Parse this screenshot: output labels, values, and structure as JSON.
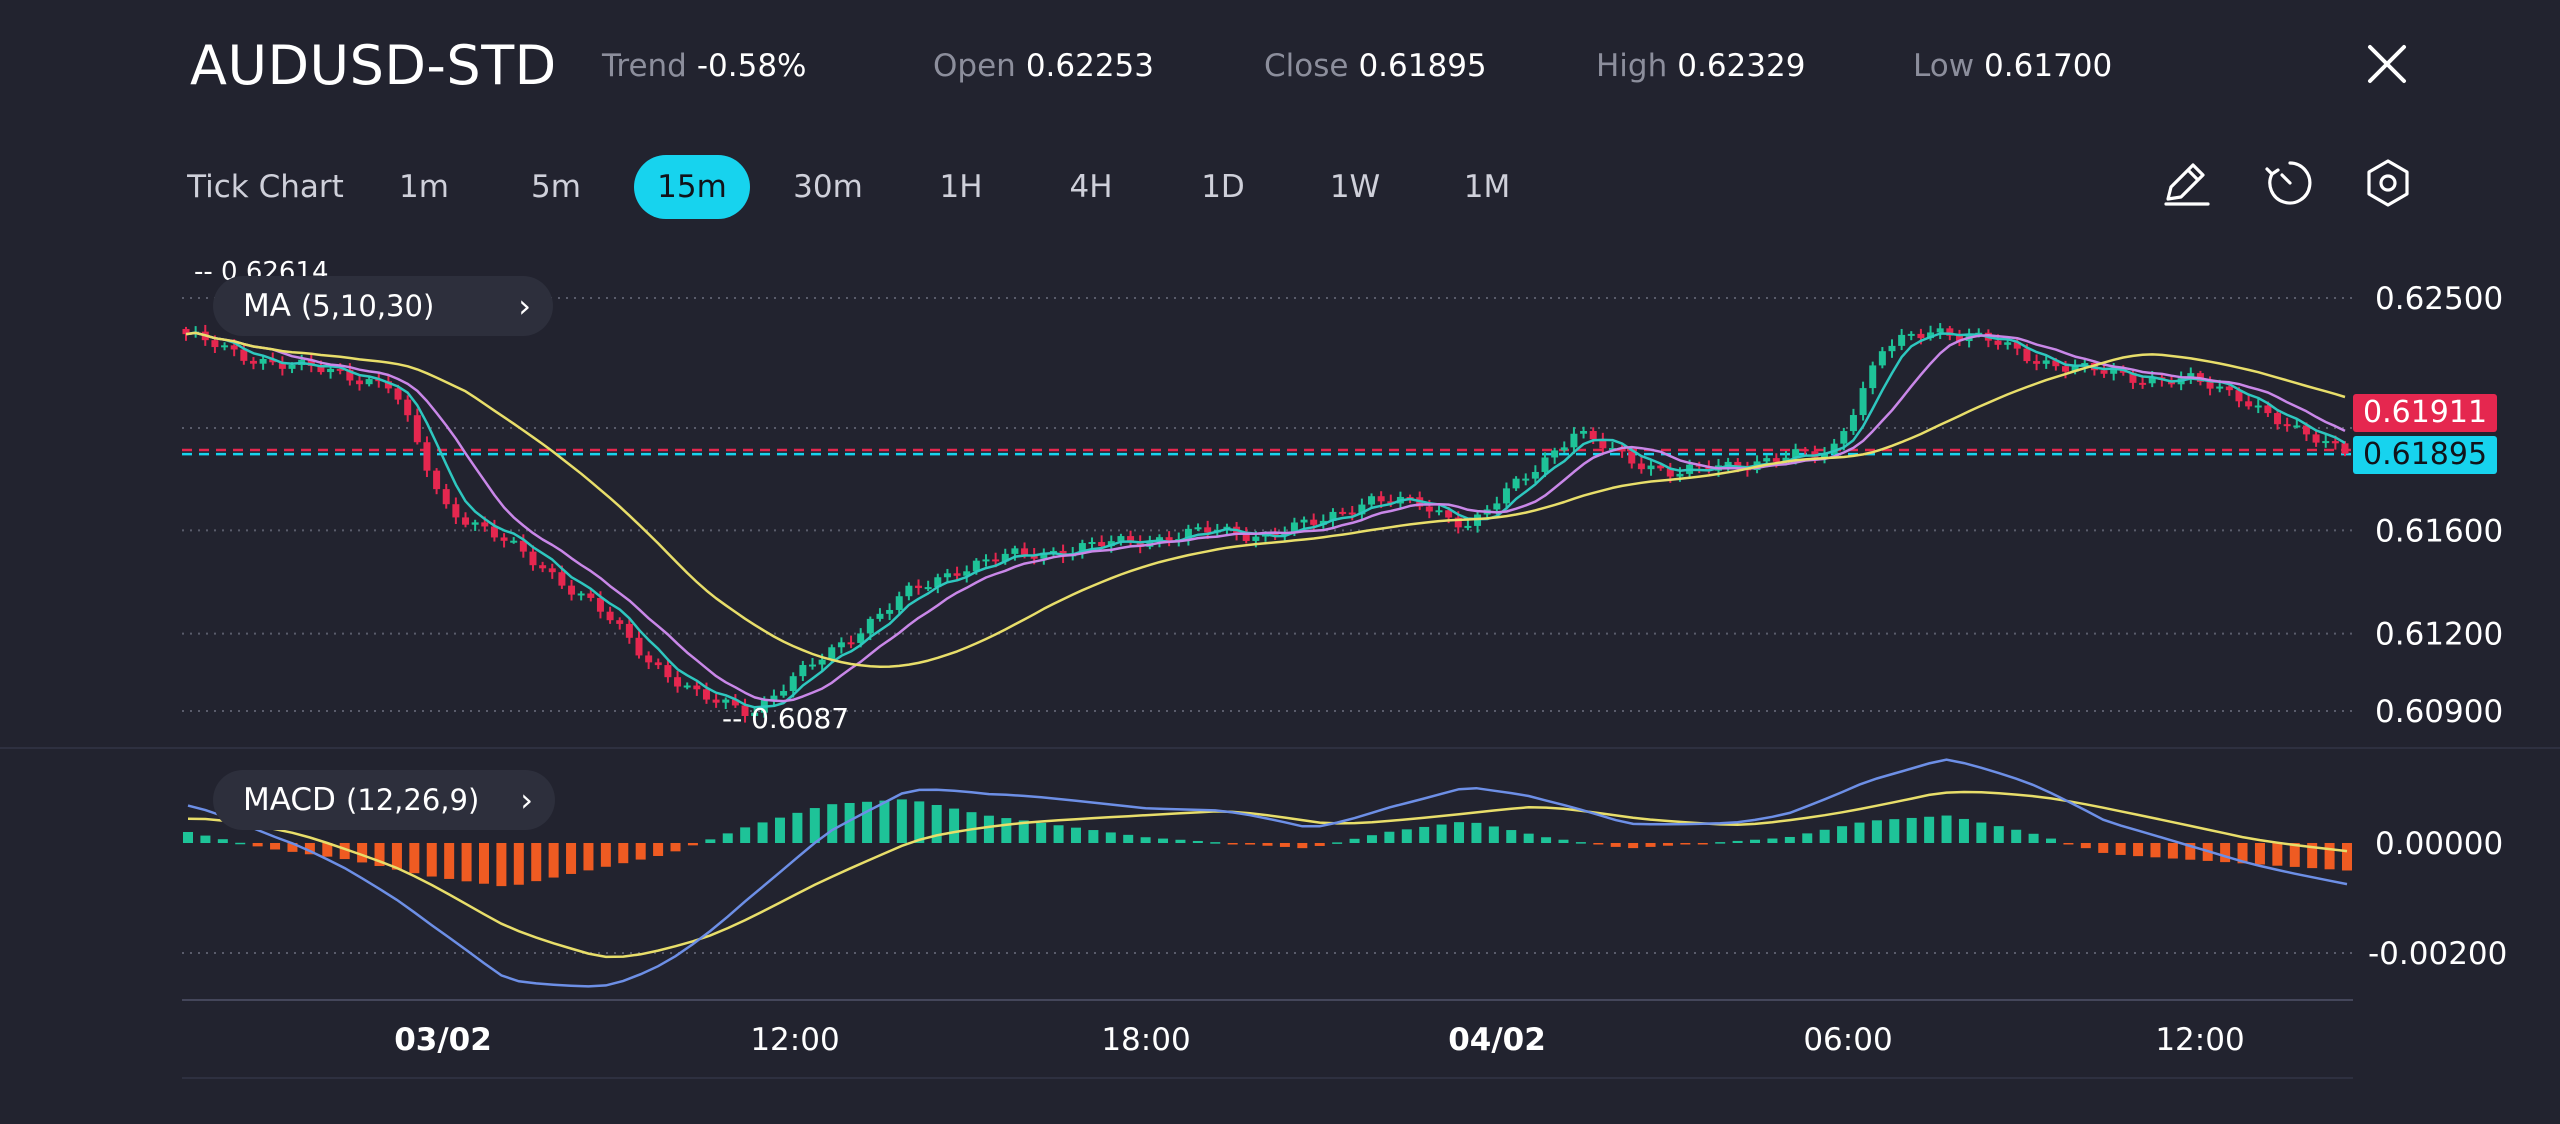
{
  "header": {
    "symbol": "AUDUSD-STD",
    "stats": [
      {
        "label": "Trend",
        "value": "-0.58%"
      },
      {
        "label": "Open",
        "value": "0.62253"
      },
      {
        "label": "Close",
        "value": "0.61895"
      },
      {
        "label": "High",
        "value": "0.62329"
      },
      {
        "label": "Low",
        "value": "0.61700"
      }
    ]
  },
  "timeframes": {
    "items": [
      "Tick Chart",
      "1m",
      "5m",
      "15m",
      "30m",
      "1H",
      "4H",
      "1D",
      "1W",
      "1M"
    ],
    "selected": "15m"
  },
  "tools": [
    "pencil-icon",
    "clock-icon",
    "settings-icon"
  ],
  "indicators": {
    "ma": {
      "label": "MA",
      "params": "(5,10,30)"
    },
    "macd": {
      "label": "MACD",
      "params": "(12,26,9)"
    }
  },
  "price_tags": {
    "bid": "0.61911",
    "ask": "0.61895"
  },
  "colors": {
    "background": "#22232f",
    "accent": "#17d3ee",
    "up": "#1ec398",
    "down": "#e5274f",
    "ma5": "#2ec7bf",
    "ma10": "#c987e8",
    "ma30": "#e8de6a",
    "macd_line": "#6d8fe6",
    "signal_line": "#e8de6a",
    "hist_pos": "#1ec398",
    "hist_neg": "#ef5b22"
  },
  "chart_data": [
    {
      "type": "candlestick",
      "title": "AUDUSD-STD",
      "x_tick_labels": [
        "03/02",
        "12:00",
        "18:00",
        "04/02",
        "06:00",
        "12:00"
      ],
      "y_tick_labels": [
        "0.62500",
        "0.61600",
        "0.61200",
        "0.60900"
      ],
      "y_range": [
        0.6087,
        0.62614
      ],
      "annotations": {
        "max_label": "0.62614",
        "min_label": "0.6087"
      },
      "current_bid": 0.61911,
      "current_ask": 0.61895,
      "legend": "MA (5,10,30)",
      "approx_close_path": [
        0.6236,
        0.6228,
        0.6224,
        0.6221,
        0.6216,
        0.617,
        0.6158,
        0.6145,
        0.613,
        0.611,
        0.6095,
        0.609,
        0.6105,
        0.612,
        0.6135,
        0.6145,
        0.615,
        0.6152,
        0.6155,
        0.6157,
        0.616,
        0.6158,
        0.6163,
        0.6172,
        0.617,
        0.6162,
        0.618,
        0.6198,
        0.6188,
        0.6182,
        0.6185,
        0.6188,
        0.619,
        0.623,
        0.6238,
        0.6234,
        0.6226,
        0.6222,
        0.6219,
        0.6218,
        0.6212,
        0.6198,
        0.6192
      ]
    },
    {
      "type": "bar",
      "title": "MACD",
      "legend": "MACD (12,26,9)",
      "y_tick_labels": [
        "0.00000",
        "-0.00200"
      ],
      "y_range": [
        -0.0028,
        0.0016
      ],
      "approx_histogram_path": [
        0.0002,
        -0.0001,
        -0.0003,
        -0.0006,
        -0.0008,
        -0.0005,
        -0.0002,
        0.0003,
        0.0007,
        0.0008,
        0.0005,
        0.0003,
        0.0001,
        0.0,
        -0.0001,
        0.0002,
        0.0004,
        0.0001,
        -0.0001,
        0.0,
        0.0001,
        0.0004,
        0.0005,
        0.0002,
        -0.0002,
        -0.0003,
        -0.0004,
        -0.0005
      ]
    }
  ]
}
